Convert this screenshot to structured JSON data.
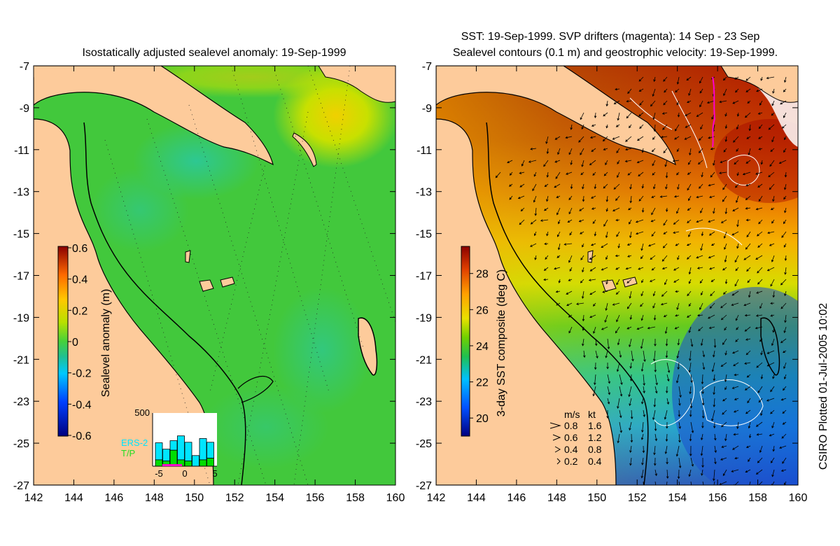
{
  "left_panel": {
    "title": "Isostatically adjusted sealevel anomaly: 19-Sep-1999",
    "colorbar": {
      "label": "Sealevel anomaly (m)",
      "ticks": [
        "0.6",
        "0.4",
        "0.2",
        "0",
        "-0.2",
        "-0.4",
        "-0.6"
      ],
      "range": [
        -0.6,
        0.6
      ]
    },
    "inset": {
      "ymax_label": "500",
      "xticks": [
        "-5",
        "0",
        "5"
      ],
      "legend": [
        {
          "label": "ERS-2",
          "color": "#00e5ff"
        },
        {
          "label": "T/P",
          "color": "#00dd00"
        }
      ],
      "bars": [
        {
          "day": -4,
          "ers2": 0.32,
          "tp": 0.12
        },
        {
          "day": -3,
          "ers2": 0.22,
          "tp": 0.1
        },
        {
          "day": -2,
          "ers2": 0.18,
          "tp": 0.3
        },
        {
          "day": -1,
          "ers2": 0.45,
          "tp": 0.12
        },
        {
          "day": 0,
          "ers2": 0.35,
          "tp": 0.1
        },
        {
          "day": 1,
          "ers2": 0.2,
          "tp": 0.0
        },
        {
          "day": 2,
          "ers2": 0.4,
          "tp": 0.12
        },
        {
          "day": 3,
          "ers2": 0.3,
          "tp": 0.15
        }
      ]
    }
  },
  "right_panel": {
    "title_line1": "SST: 19-Sep-1999. SVP drifters (magenta): 14 Sep - 23 Sep",
    "title_line2": "Sealevel contours (0.1 m) and geostrophic velocity: 19-Sep-1999.",
    "colorbar": {
      "label": "3-day SST composite (deg C)",
      "ticks": [
        "28",
        "26",
        "24",
        "22",
        "20"
      ],
      "range": [
        19,
        29.5
      ]
    },
    "velocity_legend": {
      "header_ms": "m/s",
      "header_kt": "kt",
      "rows": [
        {
          "ms": "0.8",
          "kt": "1.6"
        },
        {
          "ms": "0.6",
          "kt": "1.2"
        },
        {
          "ms": "0.4",
          "kt": "0.8"
        },
        {
          "ms": "0.2",
          "kt": "0.4"
        }
      ]
    }
  },
  "axes": {
    "x_ticks": [
      "142",
      "144",
      "146",
      "148",
      "150",
      "152",
      "154",
      "156",
      "158",
      "160"
    ],
    "y_ticks": [
      "-7",
      "-9",
      "-11",
      "-13",
      "-15",
      "-17",
      "-19",
      "-21",
      "-23",
      "-25",
      "-27"
    ]
  },
  "credit": "CSIRO Plotted 01-Jul-2005 10:02",
  "colors": {
    "land": "#fdcb9b",
    "sla_base": "#3cc43c",
    "sst_warm": "#b01a00",
    "sst_cool": "#1f6fd6",
    "contour_white": "#ffffff",
    "drifter": "#ff00cc"
  }
}
